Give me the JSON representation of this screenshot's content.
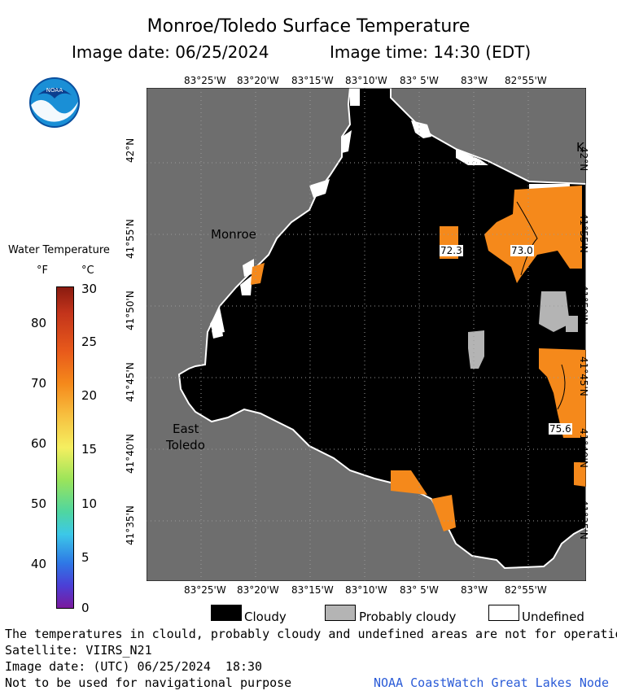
{
  "header": {
    "title": "Monroe/Toledo Surface Temperature",
    "image_date": "Image date: 06/25/2024",
    "image_time": "Image time: 14:30 (EDT)"
  },
  "logo": {
    "text": "NOAA",
    "icon": "noaa-logo-icon"
  },
  "colorbar": {
    "title": "Water Temperature",
    "unit_f": "°F",
    "unit_c": "°C",
    "f_ticks": [
      "80",
      "70",
      "60",
      "50",
      "40"
    ],
    "c_ticks": [
      "30",
      "25",
      "20",
      "15",
      "10",
      "5",
      "0"
    ]
  },
  "map": {
    "lon_labels": [
      "83°25'W",
      "83°20'W",
      "83°15'W",
      "83°10'W",
      "83° 5'W",
      "83°W",
      "82°55'W"
    ],
    "lat_labels": [
      "42°N",
      "41°55'N",
      "41°50'N",
      "41°45'N",
      "41°40'N",
      "41°35'N"
    ],
    "places": {
      "monroe": "Monroe",
      "east": "East",
      "toledo": "Toledo",
      "k": "K"
    },
    "temp_labels": [
      "72.3",
      "73.0",
      "75.6"
    ],
    "colors": {
      "land": "#6e6e6e",
      "cloud": "#000000",
      "probably_cloudy": "#b4b4b4",
      "undefined": "#ffffff",
      "warm": "#f5891b"
    }
  },
  "legend": {
    "cloudy": "Cloudy",
    "probably_cloudy": "Probably cloudy",
    "undefined": "Undefined"
  },
  "footer": {
    "note": "The temperatures in clould, probably cloudy and undefined areas are not for operational pur",
    "satellite": "Satellite: VIIRS_N21",
    "utc": "Image date: (UTC) 06/25/2024  18:30",
    "nav": "Not to be used for navigational purpose",
    "credit": "NOAA CoastWatch Great Lakes Node"
  }
}
